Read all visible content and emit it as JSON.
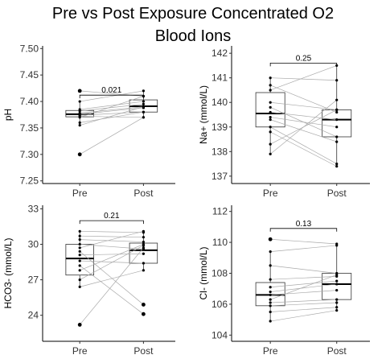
{
  "figure": {
    "title_line1": "Pre vs Post Exposure Concentrated O2",
    "title_line2": "Blood Ions"
  },
  "chart_data": [
    {
      "type": "box",
      "ylabel": "pH",
      "categories": [
        "Pre",
        "Post"
      ],
      "ylim": [
        7.245,
        7.505
      ],
      "yticks": [
        7.25,
        7.3,
        7.35,
        7.4,
        7.45,
        7.5
      ],
      "ytick_labels": [
        "7.25",
        "7.30",
        "7.35",
        "7.40",
        "7.45",
        "7.50"
      ],
      "pvalue": "0.021",
      "bracket_y": 7.412,
      "boxes": [
        {
          "category": "Pre",
          "q1": 7.371,
          "median": 7.376,
          "q3": 7.383,
          "whisker_low": 7.36,
          "whisker_high": 7.4,
          "outliers": [
            7.42,
            7.3
          ]
        },
        {
          "category": "Post",
          "q1": 7.38,
          "median": 7.391,
          "q3": 7.403,
          "whisker_low": 7.37,
          "whisker_high": 7.42,
          "outliers": []
        }
      ],
      "pairs": [
        [
          7.42,
          7.41
        ],
        [
          7.4,
          7.42
        ],
        [
          7.385,
          7.4
        ],
        [
          7.382,
          7.395
        ],
        [
          7.378,
          7.39
        ],
        [
          7.376,
          7.388
        ],
        [
          7.374,
          7.38
        ],
        [
          7.372,
          7.37
        ],
        [
          7.37,
          7.41
        ],
        [
          7.36,
          7.38
        ],
        [
          7.355,
          7.39
        ],
        [
          7.3,
          7.37
        ]
      ]
    },
    {
      "type": "box",
      "ylabel": "Na+ (mmol/L)",
      "categories": [
        "Pre",
        "Post"
      ],
      "ylim": [
        136.7,
        142.3
      ],
      "yticks": [
        137,
        138,
        139,
        140,
        141,
        142
      ],
      "ytick_labels": [
        "137",
        "138",
        "139",
        "140",
        "141",
        "142"
      ],
      "pvalue": "0.25",
      "bracket_y": 141.6,
      "boxes": [
        {
          "category": "Pre",
          "q1": 139.0,
          "median": 139.55,
          "q3": 140.4,
          "whisker_low": 137.9,
          "whisker_high": 141.0,
          "outliers": []
        },
        {
          "category": "Post",
          "q1": 138.6,
          "median": 139.3,
          "q3": 139.7,
          "whisker_low": 137.4,
          "whisker_high": 141.5,
          "outliers": []
        }
      ],
      "pairs": [
        [
          141.0,
          140.9
        ],
        [
          140.7,
          139.6
        ],
        [
          140.5,
          141.5
        ],
        [
          140.0,
          139.7
        ],
        [
          139.8,
          138.6
        ],
        [
          139.6,
          139.3
        ],
        [
          139.4,
          139.0
        ],
        [
          139.3,
          138.4
        ],
        [
          139.0,
          137.5
        ],
        [
          138.8,
          137.4
        ],
        [
          138.3,
          139.7
        ],
        [
          137.9,
          140.1
        ]
      ]
    },
    {
      "type": "box",
      "ylabel": "HCO3- (mmol/L)",
      "categories": [
        "Pre",
        "Post"
      ],
      "ylim": [
        21.8,
        33.3
      ],
      "yticks": [
        24,
        27,
        30,
        33
      ],
      "ytick_labels": [
        "24",
        "27",
        "30",
        "33"
      ],
      "pvalue": "0.21",
      "bracket_y": 32.0,
      "boxes": [
        {
          "category": "Pre",
          "q1": 27.4,
          "median": 28.8,
          "q3": 30.0,
          "whisker_low": 26.4,
          "whisker_high": 31.1,
          "outliers": [
            23.2
          ]
        },
        {
          "category": "Post",
          "q1": 28.4,
          "median": 29.5,
          "q3": 30.1,
          "whisker_low": 27.8,
          "whisker_high": 31.1,
          "outliers": [
            24.9,
            24.1
          ]
        }
      ],
      "pairs": [
        [
          31.1,
          31.0
        ],
        [
          30.7,
          30.6
        ],
        [
          30.4,
          30.2
        ],
        [
          30.0,
          29.6
        ],
        [
          29.7,
          31.1
        ],
        [
          29.4,
          24.9
        ],
        [
          29.1,
          29.2
        ],
        [
          28.6,
          28.4
        ],
        [
          28.2,
          24.1
        ],
        [
          27.8,
          30.0
        ],
        [
          27.0,
          29.9
        ],
        [
          26.4,
          27.8
        ],
        [
          23.2,
          29.7
        ]
      ]
    },
    {
      "type": "box",
      "ylabel": "Cl- (mmol/L)",
      "categories": [
        "Pre",
        "Post"
      ],
      "ylim": [
        103.6,
        112.4
      ],
      "yticks": [
        104,
        106,
        108,
        110,
        112
      ],
      "ytick_labels": [
        "104",
        "106",
        "108",
        "110",
        "112"
      ],
      "pvalue": "0.13",
      "bracket_y": 110.9,
      "boxes": [
        {
          "category": "Pre",
          "q1": 105.9,
          "median": 106.6,
          "q3": 107.4,
          "whisker_low": 104.9,
          "whisker_high": 109.4,
          "outliers": [
            110.2
          ]
        },
        {
          "category": "Post",
          "q1": 106.3,
          "median": 107.3,
          "q3": 108.0,
          "whisker_low": 105.6,
          "whisker_high": 109.9,
          "outliers": []
        }
      ],
      "pairs": [
        [
          110.2,
          109.9
        ],
        [
          109.4,
          109.8
        ],
        [
          108.5,
          108.0
        ],
        [
          107.6,
          107.8
        ],
        [
          107.1,
          107.5
        ],
        [
          106.8,
          107.3
        ],
        [
          106.6,
          106.9
        ],
        [
          106.3,
          107.9
        ],
        [
          106.1,
          106.3
        ],
        [
          105.9,
          106.1
        ],
        [
          105.5,
          105.8
        ],
        [
          104.9,
          105.6
        ]
      ]
    }
  ]
}
